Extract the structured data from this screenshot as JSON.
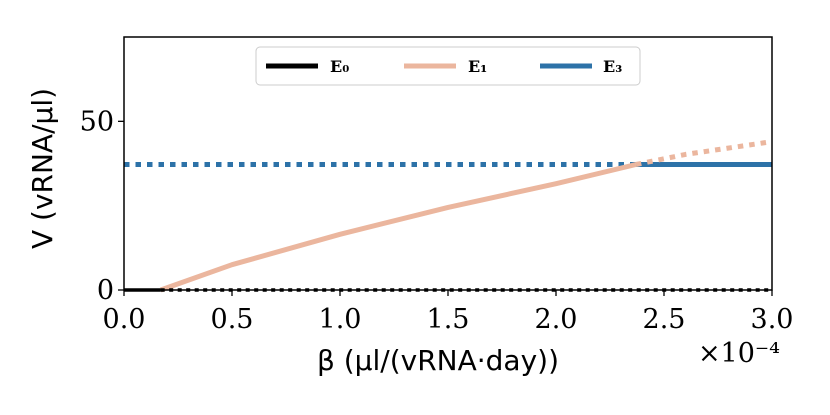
{
  "chart_data": {
    "type": "line",
    "title": "",
    "xlabel": "β (μl/(vRNA·day))",
    "ylabel": "V (vRNA/μl)",
    "x_scale_label": "×10⁻⁴",
    "xlim": [
      0.0,
      3.0
    ],
    "ylim": [
      0,
      75
    ],
    "xticks": [
      0.0,
      0.5,
      1.0,
      1.5,
      2.0,
      2.5,
      3.0
    ],
    "xtick_labels": [
      "0.0",
      "0.5",
      "1.0",
      "1.5",
      "2.0",
      "2.5",
      "3.0"
    ],
    "yticks": [
      0,
      50
    ],
    "ytick_labels": [
      "0",
      "50"
    ],
    "legend_position": "top-center",
    "series": [
      {
        "name": "E₀",
        "color": "#000000",
        "segments": [
          {
            "style": "solid",
            "x": [
              0.0,
              0.17
            ],
            "y": [
              0,
              0
            ]
          },
          {
            "style": "dotted",
            "x": [
              0.17,
              3.0
            ],
            "y": [
              0,
              0
            ]
          }
        ]
      },
      {
        "name": "E₁",
        "color": "#ebb69e",
        "segments": [
          {
            "style": "solid",
            "x": [
              0.17,
              0.5,
              1.0,
              1.5,
              2.0,
              2.37
            ],
            "y": [
              0,
              7.5,
              16.5,
              24.5,
              31.5,
              37.2
            ]
          },
          {
            "style": "dotted",
            "x": [
              2.37,
              2.6,
              3.0
            ],
            "y": [
              37.2,
              40.2,
              44.0
            ]
          }
        ]
      },
      {
        "name": "E₃",
        "color": "#2d72a8",
        "segments": [
          {
            "style": "dotted",
            "x": [
              0.0,
              2.37
            ],
            "y": [
              37.2,
              37.2
            ]
          },
          {
            "style": "solid",
            "x": [
              2.37,
              3.0
            ],
            "y": [
              37.2,
              37.2
            ]
          }
        ]
      }
    ]
  }
}
